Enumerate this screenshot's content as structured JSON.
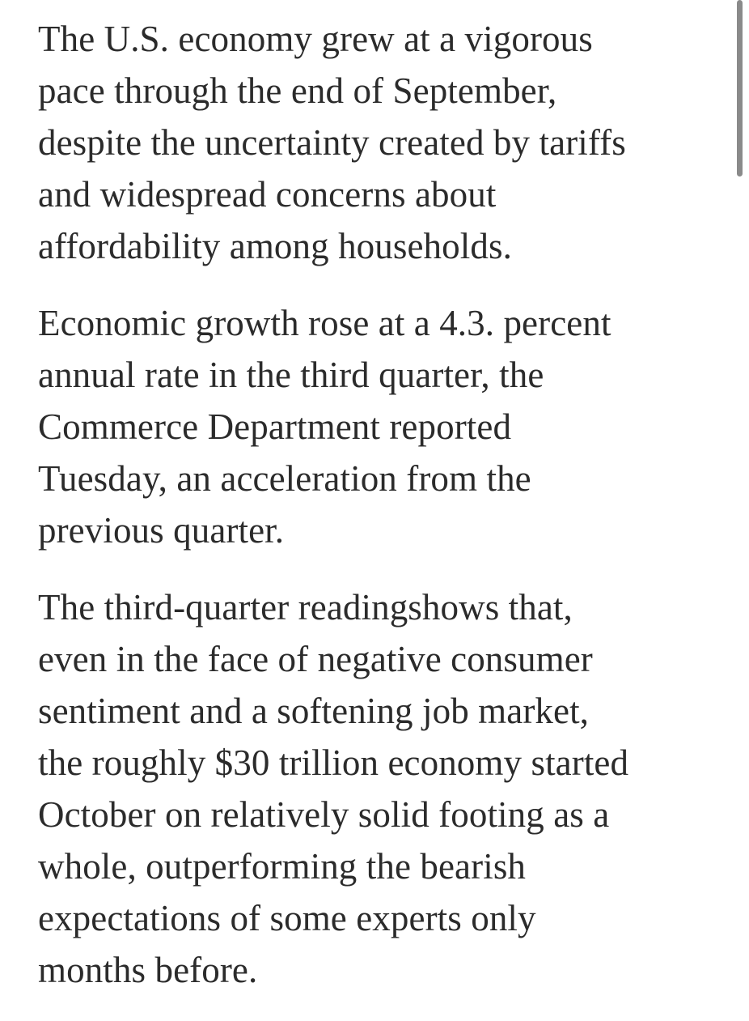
{
  "article": {
    "paragraphs": [
      {
        "lines": [
          "The U.S. economy grew at a vigorous",
          "pace through the end of September,",
          "despite the uncertainty created by tariffs",
          "and widespread concerns about",
          "affordability among households."
        ]
      },
      {
        "lines": [
          "Economic growth rose at a 4.3. percent",
          "annual rate in the third quarter, the",
          "Commerce Department reported",
          "Tuesday, an acceleration from the",
          "previous quarter."
        ]
      },
      {
        "lines": [
          "The third-quarter readingshows that,",
          "even in the face of negative consumer",
          "sentiment and a softening job market,",
          "the roughly $30 trillion economy started",
          "October on relatively solid footing as a",
          "whole, outperforming the bearish",
          "expectations of some experts only",
          "months before."
        ]
      }
    ]
  },
  "colors": {
    "text": "#2b2b2b",
    "background": "#ffffff",
    "scrollbar": "#8a8a8a"
  }
}
